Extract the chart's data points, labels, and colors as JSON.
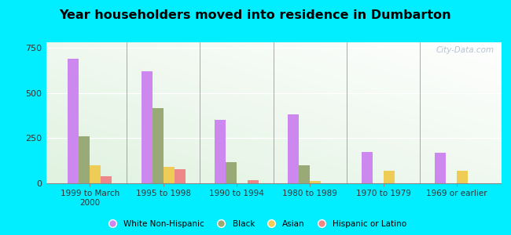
{
  "title": "Year householders moved into residence in Dumbarton",
  "categories": [
    "1999 to March\n2000",
    "1995 to 1998",
    "1990 to 1994",
    "1980 to 1989",
    "1970 to 1979",
    "1969 or earlier"
  ],
  "series": {
    "White Non-Hispanic": [
      690,
      620,
      350,
      380,
      175,
      170
    ],
    "Black": [
      260,
      415,
      115,
      100,
      0,
      0
    ],
    "Asian": [
      100,
      90,
      0,
      15,
      70,
      70
    ],
    "Hispanic or Latino": [
      38,
      80,
      18,
      0,
      0,
      0
    ]
  },
  "colors": {
    "White Non-Hispanic": "#cc88ee",
    "Black": "#99aa77",
    "Asian": "#eecc55",
    "Hispanic or Latino": "#ee8888"
  },
  "ylim": [
    0,
    780
  ],
  "yticks": [
    0,
    250,
    500,
    750
  ],
  "background_outer": "#00eeff",
  "watermark": "City-Data.com",
  "bar_width": 0.15
}
